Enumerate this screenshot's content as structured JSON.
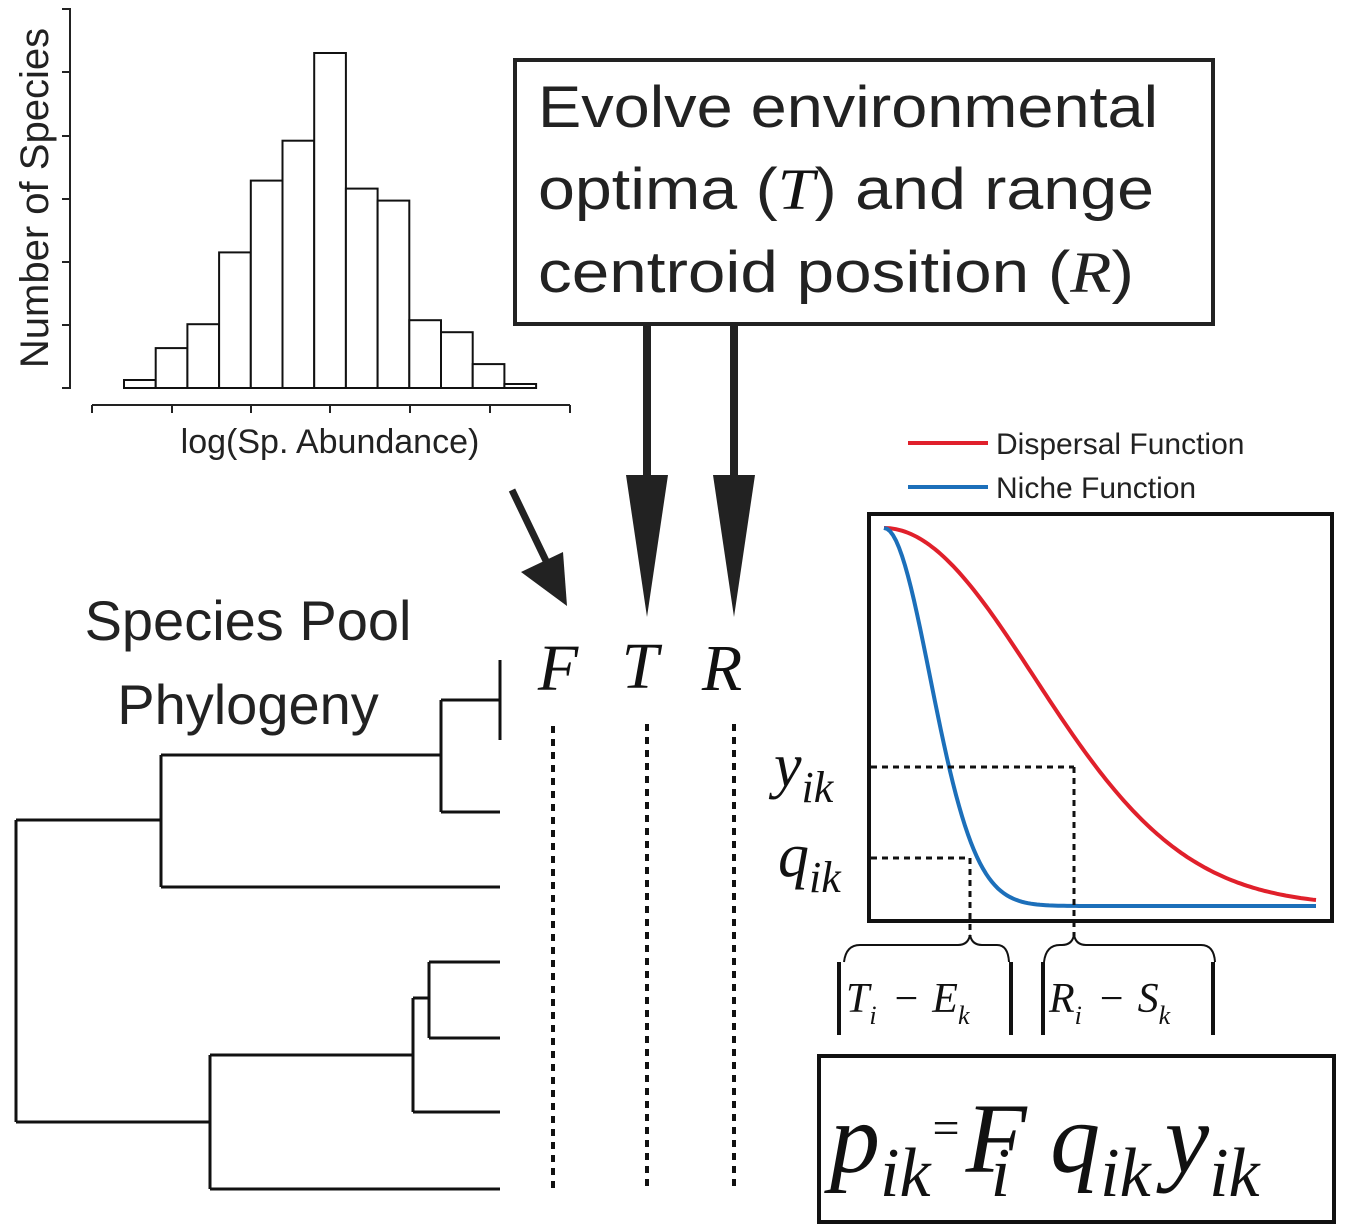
{
  "histogram": {
    "ylabel": "Number of Species",
    "xlabel": "log(Sp. Abundance)",
    "bin_counts": [
      1,
      5,
      8,
      17,
      26,
      31,
      42,
      25,
      23.5,
      8.5,
      7,
      3,
      0.5
    ]
  },
  "evolve_box": {
    "line1": "Evolve environmental",
    "line2_pre": "optima (",
    "line2_var": "T",
    "line2_post": ") and range",
    "line3_pre": "centroid position (",
    "line3_var": "R",
    "line3_post": ")"
  },
  "phylogeny": {
    "title_line1": "Species Pool",
    "title_line2": "Phylogeny"
  },
  "traits": {
    "f": "F",
    "t": "T",
    "r": "R"
  },
  "function_plot": {
    "legend_dispersal": "Dispersal Function",
    "legend_niche": "Niche Function",
    "dispersal_color": "#e0202b",
    "niche_color": "#1c6fba",
    "y_label_base": "y",
    "y_label_sub": "ik",
    "q_label_base": "q",
    "q_label_sub": "ik",
    "bracket1": {
      "a": "T",
      "a_sub": "i",
      "minus": "−",
      "b": "E",
      "b_sub": "k"
    },
    "bracket2": {
      "a": "R",
      "a_sub": "i",
      "minus": "−",
      "b": "S",
      "b_sub": "k"
    }
  },
  "equation": {
    "p": "p",
    "p_sub": "ik",
    "eq": "=",
    "f": "F",
    "f_sub": "i",
    "q": "q",
    "q_sub": "ik",
    "y": "y",
    "y_sub": "ik"
  }
}
